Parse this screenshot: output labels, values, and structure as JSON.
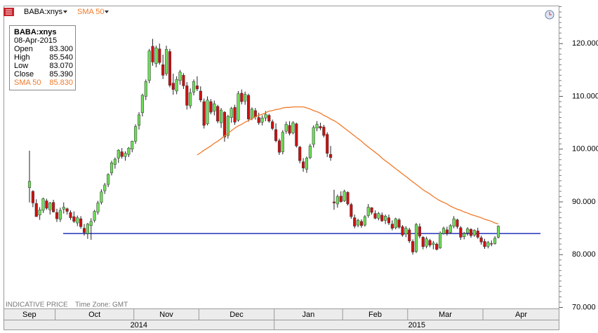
{
  "chart_data": {
    "type": "candlestick",
    "symbol": "BABA:xnys",
    "notes": [
      "INDICATIVE PRICE",
      "Time Zone: GMT"
    ],
    "info_box": {
      "title": "BABA:xnys",
      "date": "08-Apr-2015",
      "rows": [
        [
          "Open",
          "83.300"
        ],
        [
          "High",
          "85.540"
        ],
        [
          "Low",
          "83.070"
        ],
        [
          "Close",
          "85.390"
        ],
        [
          "SMA 50",
          "85.830"
        ]
      ]
    },
    "up_color": "#6fdc5a",
    "down_color": "#cc1010",
    "ylim": [
      69.8,
      127.2
    ],
    "yticks": [
      {
        "value": 70,
        "label": "70.000"
      },
      {
        "value": 80,
        "label": "80.000"
      },
      {
        "value": 90,
        "label": "90.000"
      },
      {
        "value": 100,
        "label": "100.000"
      },
      {
        "value": 110,
        "label": "110.000"
      },
      {
        "value": 120,
        "label": "120.000"
      }
    ],
    "categories": [
      "Sep",
      null,
      null,
      null,
      null,
      null,
      null,
      null,
      "Oct",
      null,
      null,
      null,
      null,
      null,
      null,
      null,
      null,
      null,
      null,
      null,
      null,
      null,
      null,
      null,
      null,
      null,
      null,
      null,
      null,
      null,
      null,
      "Nov",
      null,
      null,
      null,
      null,
      null,
      null,
      null,
      null,
      null,
      null,
      null,
      null,
      null,
      null,
      null,
      null,
      null,
      null,
      "Dec",
      null,
      null,
      null,
      null,
      null,
      null,
      null,
      null,
      null,
      null,
      null,
      null,
      null,
      null,
      null,
      null,
      null,
      null,
      null,
      null,
      null,
      "Jan",
      null,
      null,
      null,
      null,
      null,
      null,
      null,
      null,
      null,
      null,
      null,
      null,
      null,
      null,
      null,
      null,
      null,
      null,
      null,
      "Feb",
      null,
      null,
      null,
      null,
      null,
      null,
      null,
      null,
      null,
      null,
      null,
      null,
      null,
      null,
      null,
      null,
      null,
      null,
      "Mar",
      null,
      null,
      null,
      null,
      null,
      null,
      null,
      null,
      null,
      null,
      null,
      null,
      null,
      null,
      null,
      null,
      null,
      null,
      null,
      null,
      null,
      "Apr",
      null,
      null,
      null,
      null
    ],
    "year_categories": [
      "2014",
      null,
      null,
      null,
      null,
      null,
      null,
      null,
      null,
      null,
      null,
      null,
      null,
      null,
      null,
      null,
      null,
      null,
      null,
      null,
      null,
      null,
      null,
      null,
      null,
      null,
      null,
      null,
      null,
      null,
      null,
      null,
      null,
      null,
      null,
      null,
      null,
      null,
      null,
      null,
      null,
      null,
      null,
      null,
      null,
      null,
      null,
      null,
      null,
      null,
      null,
      null,
      null,
      null,
      null,
      null,
      null,
      null,
      null,
      null,
      null,
      null,
      null,
      null,
      null,
      null,
      null,
      null,
      null,
      null,
      null,
      null,
      "2015",
      null,
      null,
      null,
      null,
      null,
      null,
      null,
      null,
      null,
      null,
      null,
      null,
      null,
      null,
      null,
      null,
      null,
      null,
      null,
      null,
      null,
      null,
      null,
      null,
      null,
      null,
      null,
      null,
      null,
      null,
      null,
      null,
      null,
      null,
      null,
      null,
      null,
      null,
      null,
      null,
      null,
      null,
      null,
      null,
      null,
      null,
      null,
      null,
      null,
      null,
      null,
      null,
      null,
      null,
      null,
      null,
      null,
      null,
      null,
      null,
      null,
      null,
      null,
      null,
      null
    ],
    "ohlc": [
      [
        92.7,
        99.7,
        89.9,
        93.9
      ],
      [
        92.0,
        92.2,
        89.0,
        89.8
      ],
      [
        89.7,
        90.5,
        87.2,
        87.2
      ],
      [
        87.5,
        89.0,
        86.6,
        88.5
      ],
      [
        88.4,
        90.8,
        87.9,
        90.6
      ],
      [
        90.2,
        90.6,
        88.5,
        88.8
      ],
      [
        88.5,
        90.0,
        87.6,
        89.8
      ],
      [
        89.9,
        90.4,
        88.0,
        88.1
      ],
      [
        88.0,
        88.7,
        86.2,
        86.8
      ],
      [
        86.7,
        88.9,
        86.2,
        88.4
      ],
      [
        88.6,
        89.9,
        87.8,
        89.0
      ],
      [
        88.7,
        88.9,
        87.6,
        88.2
      ],
      [
        88.0,
        88.4,
        86.6,
        87.0
      ],
      [
        87.2,
        88.2,
        86.0,
        86.3
      ],
      [
        86.0,
        87.4,
        85.4,
        87.0
      ],
      [
        86.8,
        87.3,
        84.9,
        85.3
      ],
      [
        85.0,
        85.8,
        83.6,
        84.2
      ],
      [
        84.0,
        86.0,
        83.0,
        85.8
      ],
      [
        85.5,
        86.9,
        82.8,
        86.3
      ],
      [
        86.5,
        88.5,
        86.1,
        88.2
      ],
      [
        88.1,
        90.2,
        87.6,
        89.8
      ],
      [
        89.9,
        92.4,
        89.5,
        91.9
      ],
      [
        92.1,
        93.6,
        91.5,
        93.2
      ],
      [
        93.3,
        95.4,
        92.8,
        95.2
      ],
      [
        95.5,
        97.8,
        95.0,
        97.4
      ],
      [
        97.1,
        98.4,
        96.3,
        98.1
      ],
      [
        98.3,
        100.0,
        97.4,
        99.8
      ],
      [
        99.5,
        100.2,
        98.2,
        98.6
      ],
      [
        98.6,
        99.6,
        97.8,
        99.2
      ],
      [
        99.0,
        100.4,
        98.5,
        100.2
      ],
      [
        100.0,
        101.6,
        99.4,
        101.5
      ],
      [
        101.5,
        104.7,
        101.0,
        104.3
      ],
      [
        104.5,
        107.0,
        103.7,
        106.5
      ],
      [
        106.9,
        110.5,
        106.2,
        110.2
      ],
      [
        110.0,
        113.2,
        109.3,
        112.8
      ],
      [
        113.0,
        119.0,
        112.5,
        118.6
      ],
      [
        119.5,
        120.9,
        115.8,
        116.5
      ],
      [
        116.2,
        119.6,
        115.5,
        119.2
      ],
      [
        119.0,
        120.0,
        116.0,
        116.4
      ],
      [
        116.0,
        117.9,
        113.3,
        114.0
      ],
      [
        114.3,
        119.6,
        113.9,
        118.9
      ],
      [
        118.5,
        119.0,
        111.7,
        112.1
      ],
      [
        112.5,
        114.3,
        110.3,
        111.3
      ],
      [
        111.0,
        113.8,
        110.4,
        113.2
      ],
      [
        113.0,
        115.0,
        112.2,
        114.6
      ],
      [
        114.0,
        114.4,
        111.4,
        112.0
      ],
      [
        112.0,
        112.7,
        107.5,
        108.3
      ],
      [
        108.2,
        111.5,
        107.7,
        110.7
      ],
      [
        110.8,
        113.2,
        110.2,
        112.8
      ],
      [
        112.0,
        113.8,
        111.0,
        111.4
      ],
      [
        111.0,
        111.9,
        108.9,
        109.3
      ],
      [
        109.0,
        109.6,
        103.9,
        104.5
      ],
      [
        104.8,
        110.0,
        104.5,
        109.3
      ],
      [
        109.0,
        109.5,
        106.6,
        107.0
      ],
      [
        107.2,
        109.2,
        106.4,
        108.6
      ],
      [
        108.1,
        108.4,
        104.9,
        105.3
      ],
      [
        105.0,
        107.8,
        104.0,
        107.4
      ],
      [
        107.0,
        107.2,
        101.4,
        102.3
      ],
      [
        102.6,
        106.5,
        102.0,
        106.2
      ],
      [
        106.0,
        108.0,
        105.0,
        107.7
      ],
      [
        107.9,
        108.4,
        104.6,
        105.1
      ],
      [
        105.5,
        111.0,
        105.2,
        110.5
      ],
      [
        110.6,
        111.3,
        108.5,
        109.0
      ],
      [
        109.1,
        110.9,
        108.4,
        110.4
      ],
      [
        110.2,
        110.5,
        105.2,
        105.7
      ],
      [
        105.8,
        107.9,
        105.5,
        107.6
      ],
      [
        107.3,
        107.8,
        105.6,
        106.1
      ],
      [
        106.0,
        106.9,
        104.6,
        105.0
      ],
      [
        105.1,
        106.4,
        104.5,
        105.9
      ],
      [
        105.9,
        107.2,
        105.3,
        106.6
      ],
      [
        106.4,
        106.7,
        105.0,
        105.3
      ],
      [
        105.2,
        105.6,
        103.6,
        103.9
      ],
      [
        103.7,
        104.9,
        101.3,
        101.6
      ],
      [
        101.6,
        102.0,
        98.9,
        99.4
      ],
      [
        99.5,
        103.6,
        99.0,
        103.2
      ],
      [
        103.4,
        105.2,
        102.9,
        104.7
      ],
      [
        104.5,
        105.3,
        102.6,
        103.0
      ],
      [
        103.1,
        105.3,
        102.8,
        105.0
      ],
      [
        104.8,
        105.0,
        100.3,
        100.6
      ],
      [
        100.4,
        100.6,
        97.3,
        97.8
      ],
      [
        97.6,
        98.3,
        95.7,
        96.4
      ],
      [
        96.2,
        98.6,
        95.5,
        98.3
      ],
      [
        98.4,
        101.0,
        98.1,
        100.6
      ],
      [
        100.9,
        104.5,
        100.3,
        104.1
      ],
      [
        104.0,
        105.3,
        103.4,
        104.7
      ],
      [
        104.3,
        105.0,
        103.6,
        104.0
      ],
      [
        104.2,
        104.6,
        102.2,
        102.6
      ],
      [
        102.8,
        103.2,
        98.5,
        99.2
      ],
      [
        99.0,
        100.6,
        97.8,
        98.4
      ],
      [
        90.0,
        92.3,
        88.5,
        89.8
      ],
      [
        89.6,
        91.4,
        88.9,
        91.0
      ],
      [
        91.1,
        92.0,
        89.9,
        90.0
      ],
      [
        90.2,
        92.3,
        90.0,
        92.0
      ],
      [
        91.8,
        92.0,
        89.3,
        89.6
      ],
      [
        89.5,
        89.8,
        86.8,
        87.2
      ],
      [
        87.0,
        87.6,
        85.0,
        85.4
      ],
      [
        85.6,
        86.8,
        85.2,
        86.5
      ],
      [
        86.3,
        86.7,
        85.1,
        85.5
      ],
      [
        85.6,
        87.5,
        85.3,
        87.2
      ],
      [
        87.4,
        89.6,
        87.0,
        89.0
      ],
      [
        88.9,
        89.0,
        87.6,
        88.0
      ],
      [
        87.8,
        88.4,
        86.7,
        86.9
      ],
      [
        86.9,
        88.1,
        86.5,
        87.8
      ],
      [
        87.5,
        88.0,
        86.2,
        86.4
      ],
      [
        86.5,
        87.6,
        85.8,
        87.3
      ],
      [
        87.0,
        87.6,
        85.6,
        86.0
      ],
      [
        85.8,
        86.5,
        84.6,
        85.0
      ],
      [
        85.1,
        87.0,
        84.8,
        86.8
      ],
      [
        86.6,
        86.9,
        84.9,
        85.2
      ],
      [
        85.3,
        85.6,
        83.4,
        83.7
      ],
      [
        83.9,
        85.4,
        83.3,
        85.0
      ],
      [
        84.7,
        85.1,
        82.2,
        82.6
      ],
      [
        82.5,
        82.9,
        80.0,
        80.5
      ],
      [
        80.6,
        86.0,
        80.3,
        85.7
      ],
      [
        85.3,
        85.9,
        83.1,
        83.5
      ],
      [
        83.3,
        83.5,
        81.0,
        81.5
      ],
      [
        81.6,
        83.4,
        81.2,
        83.0
      ],
      [
        82.7,
        83.0,
        81.4,
        81.8
      ],
      [
        81.9,
        82.6,
        81.0,
        82.2
      ],
      [
        82.0,
        82.3,
        80.8,
        81.0
      ],
      [
        81.3,
        84.4,
        81.1,
        84.1
      ],
      [
        84.0,
        85.3,
        83.8,
        85.0
      ],
      [
        84.7,
        85.3,
        83.6,
        84.0
      ],
      [
        84.2,
        85.8,
        84.0,
        85.5
      ],
      [
        85.4,
        87.3,
        85.0,
        86.8
      ],
      [
        86.6,
        86.8,
        84.9,
        85.3
      ],
      [
        85.1,
        85.4,
        82.8,
        83.3
      ],
      [
        83.4,
        84.3,
        82.9,
        84.0
      ],
      [
        84.1,
        85.2,
        83.6,
        84.9
      ],
      [
        84.8,
        85.0,
        83.2,
        83.6
      ],
      [
        83.7,
        84.8,
        83.4,
        84.6
      ],
      [
        84.5,
        85.1,
        83.0,
        83.3
      ],
      [
        83.2,
        83.6,
        81.9,
        82.4
      ],
      [
        82.5,
        83.0,
        81.1,
        81.5
      ],
      [
        81.6,
        82.6,
        81.2,
        82.3
      ],
      [
        82.1,
        82.7,
        81.6,
        82.0
      ],
      [
        82.1,
        83.5,
        81.9,
        83.1
      ],
      [
        83.3,
        85.54,
        83.07,
        85.39
      ]
    ],
    "sma": {
      "name": "SMA 50",
      "color": "#f07a2a",
      "values": [
        null,
        null,
        null,
        null,
        null,
        null,
        null,
        null,
        null,
        null,
        null,
        null,
        null,
        null,
        null,
        null,
        null,
        null,
        null,
        null,
        null,
        null,
        null,
        null,
        null,
        null,
        null,
        null,
        null,
        null,
        null,
        null,
        null,
        null,
        null,
        null,
        null,
        null,
        null,
        null,
        null,
        null,
        null,
        null,
        null,
        null,
        null,
        null,
        null,
        98.9,
        99.3,
        99.8,
        100.2,
        100.6,
        101.1,
        101.5,
        102.0,
        102.5,
        103.0,
        103.5,
        104.0,
        104.4,
        104.7,
        105.1,
        105.4,
        105.8,
        106.1,
        106.4,
        106.6,
        106.9,
        107.2,
        107.3,
        107.5,
        107.6,
        107.8,
        107.9,
        107.9,
        108.0,
        108.0,
        108.0,
        108.0,
        107.8,
        107.6,
        107.3,
        107.1,
        106.8,
        106.4,
        106.1,
        105.7,
        105.4,
        105.0,
        104.5,
        104.0,
        103.5,
        103.0,
        102.5,
        102.0,
        101.5,
        100.9,
        100.4,
        99.9,
        99.4,
        98.9,
        98.3,
        97.8,
        97.3,
        96.8,
        96.3,
        95.8,
        95.3,
        94.8,
        94.3,
        93.8,
        93.3,
        92.8,
        92.3,
        91.9,
        91.5,
        91.0,
        90.6,
        90.2,
        89.9,
        89.6,
        89.2,
        88.9,
        88.6,
        88.4,
        88.1,
        87.9,
        87.6,
        87.4,
        87.2,
        87.0,
        86.7,
        86.5,
        86.3,
        86.0,
        85.83
      ]
    },
    "hline": {
      "value": 84.0,
      "color": "#2233bb"
    }
  }
}
